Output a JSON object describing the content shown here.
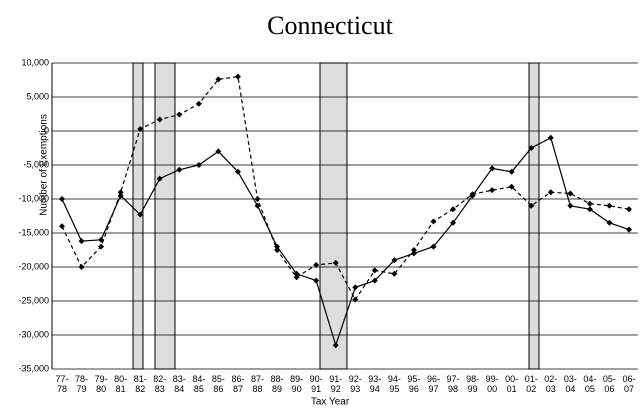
{
  "chart_data": {
    "type": "line",
    "title": "Connecticut",
    "x_label": "Tax Year",
    "y_label": "Number of Exemptions",
    "categories": [
      "77-78",
      "78-79",
      "79-80",
      "80-81",
      "81-82",
      "82-83",
      "83-84",
      "84-85",
      "85-86",
      "86-87",
      "87-88",
      "88-89",
      "89-90",
      "90-91",
      "91-92",
      "92-93",
      "93-94",
      "94-95",
      "95-96",
      "96-97",
      "97-98",
      "98-99",
      "99-00",
      "00-01",
      "01-02",
      "02-03",
      "03-04",
      "04-05",
      "05-06",
      "06-07"
    ],
    "series": [
      {
        "color": "#000000",
        "dash": false,
        "values": [
          -10000,
          -16200,
          -16000,
          -9500,
          -12300,
          -7000,
          -5700,
          -5000,
          -3000,
          -6000,
          -11000,
          -17000,
          -21000,
          -22000,
          -31500,
          -23000,
          -22000,
          -19000,
          -18000,
          -17000,
          -13500,
          -9500,
          -5500,
          -6000,
          -2500,
          -1000,
          -11000,
          -11500,
          -13500,
          -14500
        ]
      },
      {
        "color": "#000000",
        "dash": true,
        "values": [
          -14000,
          -20000,
          -17000,
          -9000,
          300,
          1700,
          2400,
          4000,
          7600,
          8000,
          -10000,
          -17500,
          -21500,
          -19700,
          -19400,
          -24800,
          -20500,
          -21000,
          -17500,
          -13300,
          -11500,
          -9300,
          -8700,
          -8200,
          -11000,
          -9000,
          -9200,
          -10700,
          -11000,
          -11500
        ]
      }
    ],
    "ylim": [
      -35000,
      10000
    ],
    "yticks": [
      {
        "value": 10000,
        "label": "10,000"
      },
      {
        "value": 5000,
        "label": "5,000"
      },
      0,
      {
        "value": -5000,
        "label": "-5,000"
      },
      {
        "value": -10000,
        "label": "-10,000"
      },
      {
        "value": -15000,
        "label": "-15,000"
      },
      {
        "value": -20000,
        "label": "-20,000"
      },
      {
        "value": -25000,
        "label": "-25,000"
      },
      {
        "value": -30000,
        "label": "-30,000"
      },
      {
        "value": -35000,
        "label": "-35,000"
      }
    ],
    "grid": true
  }
}
